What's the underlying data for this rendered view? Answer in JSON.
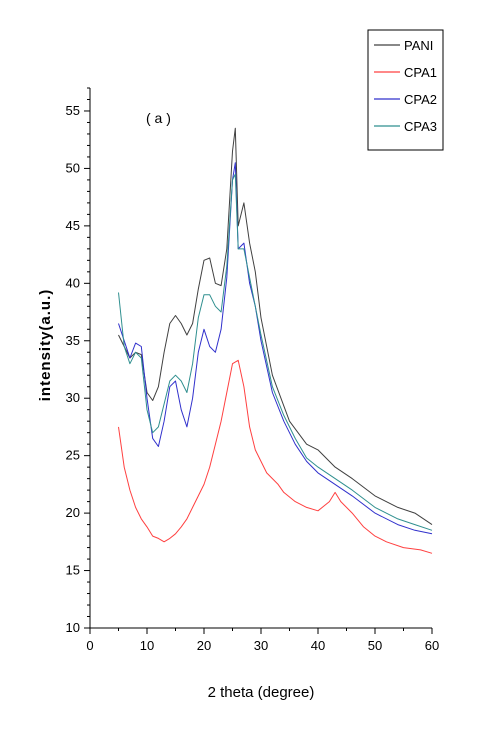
{
  "chart_data": {
    "type": "line",
    "annotation": "( a )",
    "xlabel": "2 theta (degree)",
    "ylabel": "intensity(a.u.)",
    "xlim": [
      0,
      60
    ],
    "ylim": [
      10,
      57
    ],
    "xticks": [
      0,
      10,
      20,
      30,
      40,
      50,
      60
    ],
    "yticks": [
      10,
      15,
      20,
      25,
      30,
      35,
      40,
      45,
      50,
      55
    ],
    "grid": false,
    "legend_position": "top-right",
    "series": [
      {
        "name": "PANI",
        "color": "#404040",
        "x": [
          5,
          6,
          7,
          8,
          9,
          10,
          11,
          12,
          13,
          14,
          15,
          16,
          17,
          18,
          19,
          20,
          21,
          22,
          23,
          24,
          25,
          25.5,
          26,
          27,
          28,
          29,
          30,
          32,
          35,
          38,
          40,
          43,
          46,
          50,
          54,
          57,
          60
        ],
        "y": [
          35.5,
          34.5,
          33.5,
          34.0,
          33.8,
          30.5,
          29.8,
          31.0,
          34.0,
          36.5,
          37.2,
          36.5,
          35.5,
          36.5,
          39.5,
          42.0,
          42.2,
          40.0,
          39.8,
          43.0,
          51.5,
          53.5,
          45.0,
          47.0,
          43.5,
          41.0,
          37.0,
          32.0,
          28.0,
          26.0,
          25.5,
          24.0,
          23.0,
          21.5,
          20.5,
          20.0,
          19.0
        ]
      },
      {
        "name": "CPA1",
        "color": "#ff4040",
        "x": [
          5,
          6,
          7,
          8,
          9,
          10,
          11,
          12,
          13,
          14,
          15,
          16,
          17,
          18,
          19,
          20,
          21,
          22,
          23,
          24,
          25,
          26,
          27,
          28,
          29,
          30,
          31,
          32,
          33,
          34,
          36,
          38,
          40,
          42,
          43,
          44,
          46,
          48,
          50,
          52,
          55,
          58,
          60
        ],
        "y": [
          27.5,
          24.0,
          22.0,
          20.5,
          19.5,
          18.8,
          18.0,
          17.8,
          17.5,
          17.8,
          18.2,
          18.8,
          19.5,
          20.5,
          21.5,
          22.5,
          24.0,
          26.0,
          28.0,
          30.5,
          33.0,
          33.3,
          31.0,
          27.5,
          25.5,
          24.5,
          23.5,
          23.0,
          22.5,
          21.8,
          21.0,
          20.5,
          20.2,
          21.0,
          21.8,
          21.0,
          20.0,
          18.8,
          18.0,
          17.5,
          17.0,
          16.8,
          16.5
        ]
      },
      {
        "name": "CPA2",
        "color": "#3030cc",
        "x": [
          5,
          6,
          7,
          8,
          9,
          10,
          11,
          12,
          13,
          14,
          15,
          16,
          17,
          18,
          19,
          20,
          21,
          22,
          23,
          24,
          25,
          25.5,
          26,
          27,
          28,
          29,
          30,
          32,
          34,
          36,
          38,
          40,
          43,
          46,
          50,
          54,
          57,
          60
        ],
        "y": [
          36.5,
          35.0,
          33.5,
          34.8,
          34.5,
          30.0,
          26.5,
          25.8,
          28.0,
          31.0,
          31.5,
          29.0,
          27.5,
          30.0,
          34.0,
          36.0,
          34.5,
          34.0,
          36.0,
          40.5,
          49.0,
          50.5,
          43.0,
          43.5,
          40.0,
          38.0,
          35.0,
          30.5,
          28.0,
          26.0,
          24.5,
          23.5,
          22.5,
          21.5,
          20.0,
          19.0,
          18.5,
          18.2
        ]
      },
      {
        "name": "CPA3",
        "color": "#2f8f8f",
        "x": [
          5,
          6,
          7,
          8,
          9,
          10,
          11,
          12,
          13,
          14,
          15,
          16,
          17,
          18,
          19,
          20,
          21,
          22,
          23,
          24,
          25,
          25.5,
          26,
          27,
          28,
          29,
          30,
          32,
          34,
          36,
          38,
          40,
          43,
          46,
          50,
          54,
          57,
          60
        ],
        "y": [
          39.2,
          34.5,
          33.0,
          34.0,
          33.5,
          29.0,
          27.0,
          27.5,
          29.5,
          31.5,
          32.0,
          31.5,
          30.5,
          33.0,
          37.0,
          39.0,
          39.0,
          38.0,
          37.5,
          41.5,
          49.0,
          49.5,
          43.0,
          43.0,
          40.5,
          38.0,
          35.5,
          31.0,
          28.5,
          26.5,
          24.8,
          24.0,
          23.0,
          22.0,
          20.5,
          19.5,
          19.0,
          18.5
        ]
      }
    ]
  }
}
